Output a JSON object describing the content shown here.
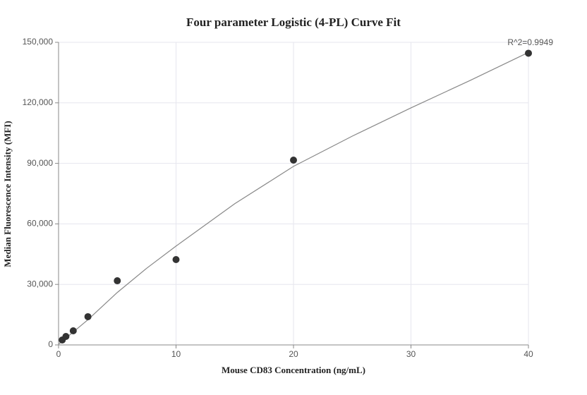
{
  "chart_data": {
    "type": "scatter",
    "title": "Four parameter Logistic (4-PL) Curve Fit",
    "xlabel": "Mouse CD83 Concentration (ng/mL)",
    "ylabel": "Median Fluorescence Intensity (MFI)",
    "annotation": "R^2=0.9949",
    "x": [
      0.3125,
      0.625,
      1.25,
      2.5,
      5,
      10,
      20,
      40
    ],
    "values": [
      2450,
      4200,
      7000,
      14000,
      31800,
      42300,
      91600,
      144600
    ],
    "color": "#333333",
    "fit_curve": {
      "x": [
        0,
        2.5,
        5,
        7.5,
        10,
        15,
        20,
        25,
        30,
        35,
        40
      ],
      "values": [
        300,
        12500,
        26000,
        38000,
        49000,
        70000,
        88500,
        103500,
        117500,
        131000,
        145000
      ],
      "color": "#888888"
    },
    "xlim": [
      0,
      40
    ],
    "xticks": [
      0,
      10,
      20,
      30,
      40
    ],
    "ylim": [
      0,
      150000
    ],
    "yticks": [
      0,
      {
        "value": 30000,
        "label": "30,000"
      },
      {
        "value": 60000,
        "label": "60,000"
      },
      {
        "value": 90000,
        "label": "90,000"
      },
      {
        "value": 120000,
        "label": "120,000"
      },
      {
        "value": 150000,
        "label": "150,000"
      }
    ],
    "grid": true
  }
}
